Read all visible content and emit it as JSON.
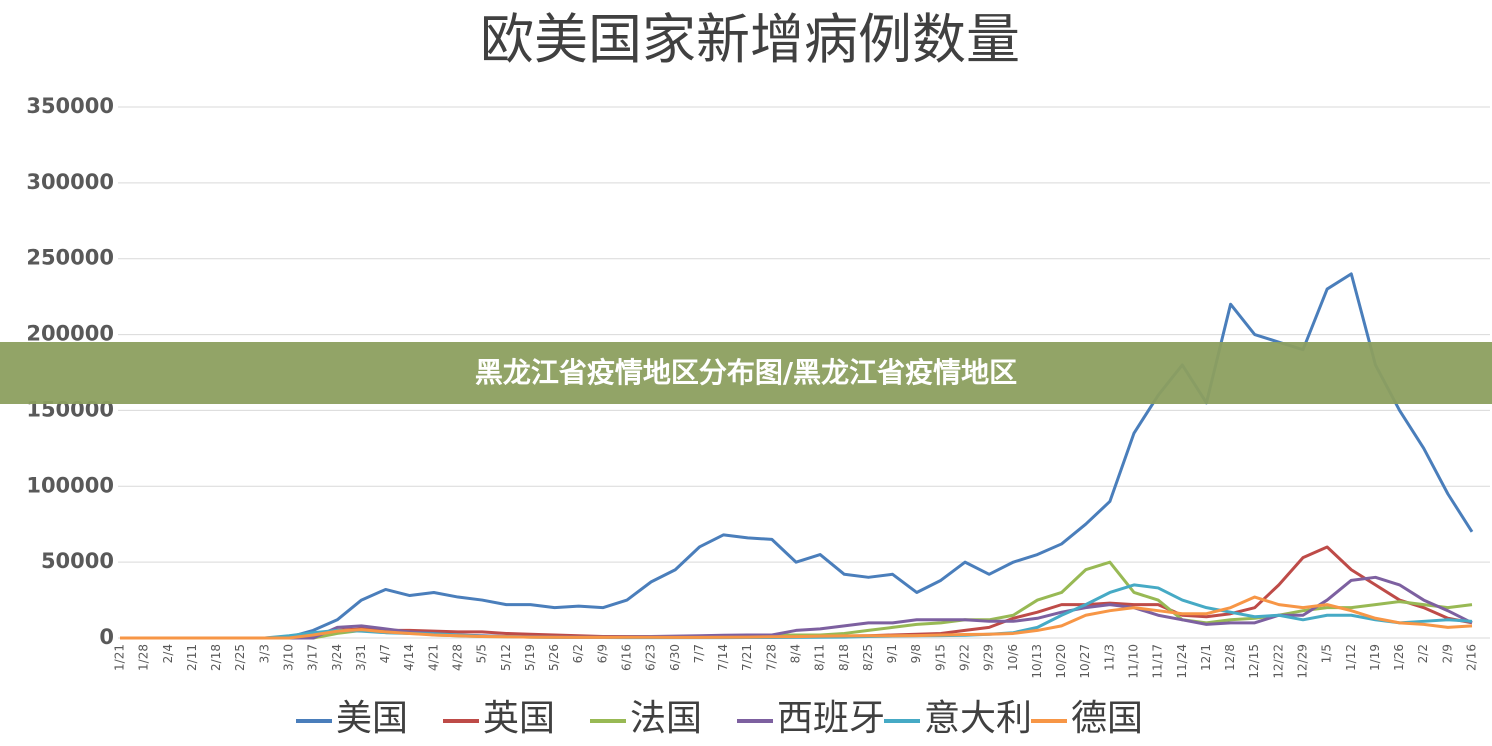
{
  "chart_data": {
    "type": "line",
    "title": "欧美国家新增病例数量",
    "categories": [
      "1/21",
      "1/28",
      "2/4",
      "2/11",
      "2/18",
      "2/25",
      "3/3",
      "3/10",
      "3/17",
      "3/24",
      "3/31",
      "4/7",
      "4/14",
      "4/21",
      "4/28",
      "5/5",
      "5/12",
      "5/19",
      "5/26",
      "6/2",
      "6/9",
      "6/16",
      "6/23",
      "6/30",
      "7/7",
      "7/14",
      "7/21",
      "7/28",
      "8/4",
      "8/11",
      "8/18",
      "8/25",
      "9/1",
      "9/8",
      "9/15",
      "9/22",
      "9/29",
      "10/6",
      "10/13",
      "10/20",
      "10/27",
      "11/3",
      "11/10",
      "11/17",
      "11/24",
      "12/1",
      "12/8",
      "12/15",
      "12/22",
      "12/29",
      "1/5",
      "1/12",
      "1/19",
      "1/26",
      "2/2",
      "2/9",
      "2/16"
    ],
    "series": [
      {
        "name": "美国",
        "color": "#4a7ebb",
        "values": [
          0,
          0,
          0,
          0,
          0,
          0,
          0,
          500,
          5000,
          12000,
          25000,
          32000,
          28000,
          30000,
          27000,
          25000,
          22000,
          22000,
          20000,
          21000,
          20000,
          25000,
          37000,
          45000,
          60000,
          68000,
          66000,
          65000,
          50000,
          55000,
          42000,
          40000,
          42000,
          30000,
          38000,
          50000,
          42000,
          50000,
          55000,
          62000,
          75000,
          90000,
          135000,
          160000,
          180000,
          155000,
          220000,
          200000,
          195000,
          190000,
          230000,
          240000,
          180000,
          150000,
          125000,
          95000,
          70000
        ]
      },
      {
        "name": "英国",
        "color": "#be4b48",
        "values": [
          0,
          0,
          0,
          0,
          0,
          0,
          0,
          0,
          0,
          5000,
          6000,
          5000,
          5000,
          4500,
          4000,
          4000,
          3000,
          2500,
          2000,
          1500,
          1000,
          1000,
          1000,
          800,
          800,
          700,
          800,
          900,
          1000,
          1200,
          1300,
          1500,
          2000,
          2500,
          3000,
          5000,
          7000,
          13000,
          17000,
          22000,
          22000,
          23000,
          22000,
          22000,
          15000,
          14000,
          16000,
          20000,
          35000,
          53000,
          60000,
          45000,
          35000,
          25000,
          20000,
          13000,
          10000
        ]
      },
      {
        "name": "法国",
        "color": "#98b954",
        "values": [
          0,
          0,
          0,
          0,
          0,
          0,
          0,
          0,
          0,
          3000,
          5000,
          4000,
          4000,
          2000,
          1500,
          1000,
          800,
          600,
          500,
          500,
          500,
          600,
          700,
          800,
          1000,
          1200,
          1500,
          1800,
          2000,
          2000,
          3000,
          5000,
          7000,
          9000,
          10000,
          12000,
          12000,
          15000,
          25000,
          30000,
          45000,
          50000,
          30000,
          25000,
          12000,
          10000,
          12000,
          13000,
          15000,
          18000,
          20000,
          20000,
          22000,
          24000,
          22000,
          20000,
          22000
        ]
      },
      {
        "name": "西班牙",
        "color": "#7d60a0",
        "values": [
          0,
          0,
          0,
          0,
          0,
          0,
          0,
          0,
          0,
          7000,
          8000,
          6000,
          4000,
          3000,
          2000,
          1500,
          1000,
          800,
          700,
          600,
          600,
          800,
          1000,
          1200,
          1500,
          1800,
          2000,
          2000,
          5000,
          6000,
          8000,
          10000,
          10000,
          12000,
          12000,
          12000,
          11000,
          11000,
          13000,
          17000,
          20000,
          22000,
          20000,
          15000,
          12000,
          9000,
          10000,
          10000,
          15000,
          15000,
          25000,
          38000,
          40000,
          35000,
          25000,
          18000,
          10000
        ]
      },
      {
        "name": "意大利",
        "color": "#46aac5",
        "values": [
          0,
          0,
          0,
          0,
          0,
          0,
          0,
          1500,
          3500,
          5000,
          4500,
          3500,
          3000,
          2700,
          2000,
          1200,
          900,
          600,
          400,
          300,
          300,
          250,
          250,
          250,
          250,
          250,
          300,
          350,
          400,
          500,
          600,
          1000,
          1300,
          1500,
          1600,
          1800,
          2500,
          3500,
          7000,
          15000,
          22000,
          30000,
          35000,
          33000,
          25000,
          20000,
          17000,
          14000,
          15000,
          12000,
          15000,
          15000,
          12000,
          10000,
          11000,
          12000,
          11000
        ]
      },
      {
        "name": "德国",
        "color": "#f79646",
        "values": [
          0,
          0,
          0,
          0,
          0,
          0,
          0,
          0,
          2000,
          4500,
          5500,
          4000,
          3000,
          2000,
          1500,
          1000,
          800,
          600,
          500,
          400,
          400,
          500,
          500,
          400,
          400,
          500,
          600,
          800,
          900,
          1200,
          1400,
          1500,
          1500,
          1600,
          2000,
          2300,
          2500,
          3000,
          5000,
          8000,
          15000,
          18000,
          20000,
          18000,
          16000,
          16000,
          20000,
          27000,
          22000,
          20000,
          22000,
          18000,
          13000,
          10000,
          9000,
          7000,
          8000
        ]
      }
    ],
    "ylim": [
      0,
      350000
    ],
    "yticks": [
      0,
      50000,
      100000,
      150000,
      200000,
      250000,
      300000,
      350000
    ],
    "grid": true,
    "legend": "bottom"
  },
  "banner": "黑龙江省疫情地区分布图/黑龙江省疫情地区"
}
